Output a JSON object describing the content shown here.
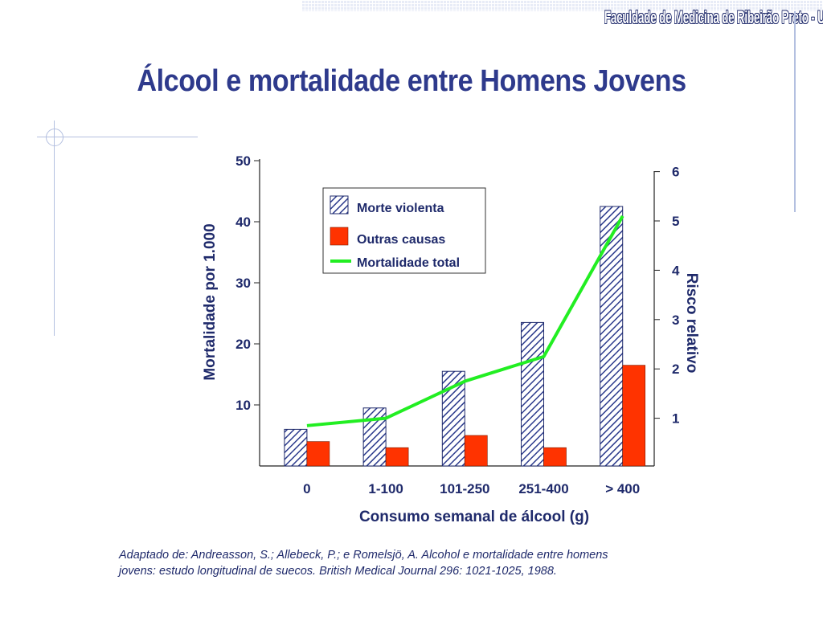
{
  "header": {
    "institution": "Faculdade de Medicina de Ribeirão Preto - USP",
    "title": "Álcool e mortalidade entre Homens Jovens"
  },
  "citation": {
    "line1": "Adaptado de: Andreasson, S.; Allebeck, P.; e Romelsjö, A. Alcohol e mortalidade entre homens",
    "line2": "jovens: estudo longitudinal de suecos. British Medical Journal 296: 1021-1025, 1988."
  },
  "colors": {
    "title": "#2e3a8c",
    "hatch": "#2b3a8c",
    "other_causes": "#ff3300",
    "total_line": "#22ee22",
    "axis_text": "#1f2a6b"
  },
  "chart_data": {
    "type": "bar",
    "categories": [
      "0",
      "1-100",
      "101-250",
      "251-400",
      "> 400"
    ],
    "series": [
      {
        "name": "Morte violenta",
        "kind": "bar",
        "pattern": "hatched",
        "values": [
          6,
          9.5,
          15.5,
          23.5,
          42.5
        ]
      },
      {
        "name": "Outras causas",
        "kind": "bar",
        "values": [
          4,
          3,
          5,
          3,
          16.5
        ]
      },
      {
        "name": "Mortalidade total",
        "kind": "line",
        "axis": "right",
        "values": [
          0.85,
          1.0,
          1.75,
          2.25,
          5.1
        ]
      }
    ],
    "xlabel": "Consumo semanal de álcool (g)",
    "ylabel": "Mortalidade por 1.000",
    "ylabel_right": "Risco relativo",
    "ylim": [
      0,
      50
    ],
    "ylim_right": [
      0,
      6
    ],
    "yticks": [
      "10",
      "20",
      "30",
      "40",
      "50"
    ],
    "yticks_right": [
      "1",
      "2",
      "3",
      "4",
      "5",
      "6"
    ],
    "legend_position": "top-center",
    "grid": false
  }
}
